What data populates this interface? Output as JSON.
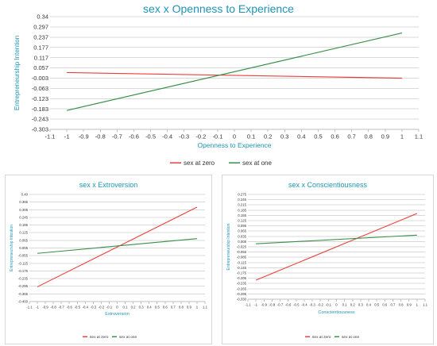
{
  "chart_data": [
    {
      "id": "main",
      "type": "line",
      "title": "sex x Openness to Experience",
      "xlabel": "Openness to Experience",
      "ylabel": "Entrepreneurship Intention",
      "xlim": [
        -1.1,
        1.1
      ],
      "ylim": [
        -0.303,
        0.34
      ],
      "x_ticks": [
        "-1.1",
        "-1",
        "-0.9",
        "-0.8",
        "-0.7",
        "-0.6",
        "-0.5",
        "-0.4",
        "-0.3",
        "-0.2",
        "-0.1",
        "0",
        "0.1",
        "0.2",
        "0.3",
        "0.4",
        "0.5",
        "0.6",
        "0.7",
        "0.8",
        "0.9",
        "1",
        "1.1"
      ],
      "y_ticks": [
        "0.34",
        "0.297",
        "0.237",
        "0.177",
        "0.117",
        "0.057",
        "-0.003",
        "-0.063",
        "-0.123",
        "-0.183",
        "-0.243",
        "-0.303"
      ],
      "grid": true,
      "legend": "bottom",
      "series": [
        {
          "name": "sex at zero",
          "color": "#e8413c",
          "x": [
            -1,
            1
          ],
          "y": [
            0.021,
            -0.011
          ]
        },
        {
          "name": "sex at one",
          "color": "#3a8f4a",
          "x": [
            -1,
            1
          ],
          "y": [
            -0.195,
            0.247
          ]
        }
      ]
    },
    {
      "id": "left",
      "type": "line",
      "title": "sex x Extroversion",
      "xlabel": "Extroversion",
      "ylabel": "Entrepreneurship Intention",
      "xlim": [
        -1.1,
        1.1
      ],
      "ylim": [
        -0.4,
        0.4
      ],
      "x_ticks": [
        "-1.1",
        "-1",
        "-0.9",
        "-0.8",
        "-0.7",
        "-0.6",
        "-0.5",
        "-0.4",
        "-0.3",
        "-0.2",
        "-0.1",
        "0",
        "0.1",
        "0.2",
        "0.3",
        "0.4",
        "0.5",
        "0.6",
        "0.7",
        "0.8",
        "0.9",
        "1",
        "1.1"
      ],
      "y_ticks": [
        "0.40",
        "0.365",
        "0.305",
        "0.245",
        "0.185",
        "0.125",
        "0.065",
        "0.005",
        "-0.055",
        "-0.115",
        "-0.175",
        "-0.235",
        "-0.295",
        "-0.355",
        "-0.400"
      ],
      "grid": true,
      "legend": "bottom",
      "series": [
        {
          "name": "sex at zero",
          "color": "#e8413c",
          "x": [
            -1,
            1
          ],
          "y": [
            -0.29,
            0.305
          ]
        },
        {
          "name": "sex at one",
          "color": "#3a8f4a",
          "x": [
            -1,
            1
          ],
          "y": [
            -0.04,
            0.07
          ]
        }
      ]
    },
    {
      "id": "right",
      "type": "line",
      "title": "sex x Conscientiousness",
      "xlabel": "Conscientiousness",
      "ylabel": "Entrepreneurship Intention",
      "xlim": [
        -1.1,
        1.1
      ],
      "ylim": [
        -0.33,
        0.275
      ],
      "x_ticks": [
        "-1.1",
        "-1",
        "-0.9",
        "-0.8",
        "-0.7",
        "-0.6",
        "-0.5",
        "-0.4",
        "-0.3",
        "-0.2",
        "-0.1",
        "0",
        "0.1",
        "0.2",
        "0.3",
        "0.4",
        "0.5",
        "0.6",
        "0.7",
        "0.8",
        "0.9",
        "1",
        "1.1"
      ],
      "y_ticks": [
        "0.275",
        "0.245",
        "0.215",
        "0.185",
        "0.155",
        "0.125",
        "0.095",
        "0.065",
        "0.035",
        "0.005",
        "-0.025",
        "-0.055",
        "-0.085",
        "-0.115",
        "-0.145",
        "-0.175",
        "-0.205",
        "-0.235",
        "-0.265",
        "-0.295",
        "-0.330"
      ],
      "grid": true,
      "legend": "bottom",
      "series": [
        {
          "name": "sex at zero",
          "color": "#e8413c",
          "x": [
            -1,
            1
          ],
          "y": [
            -0.22,
            0.165
          ]
        },
        {
          "name": "sex at one",
          "color": "#3a8f4a",
          "x": [
            -1,
            1
          ],
          "y": [
            -0.01,
            0.04
          ]
        }
      ]
    }
  ]
}
